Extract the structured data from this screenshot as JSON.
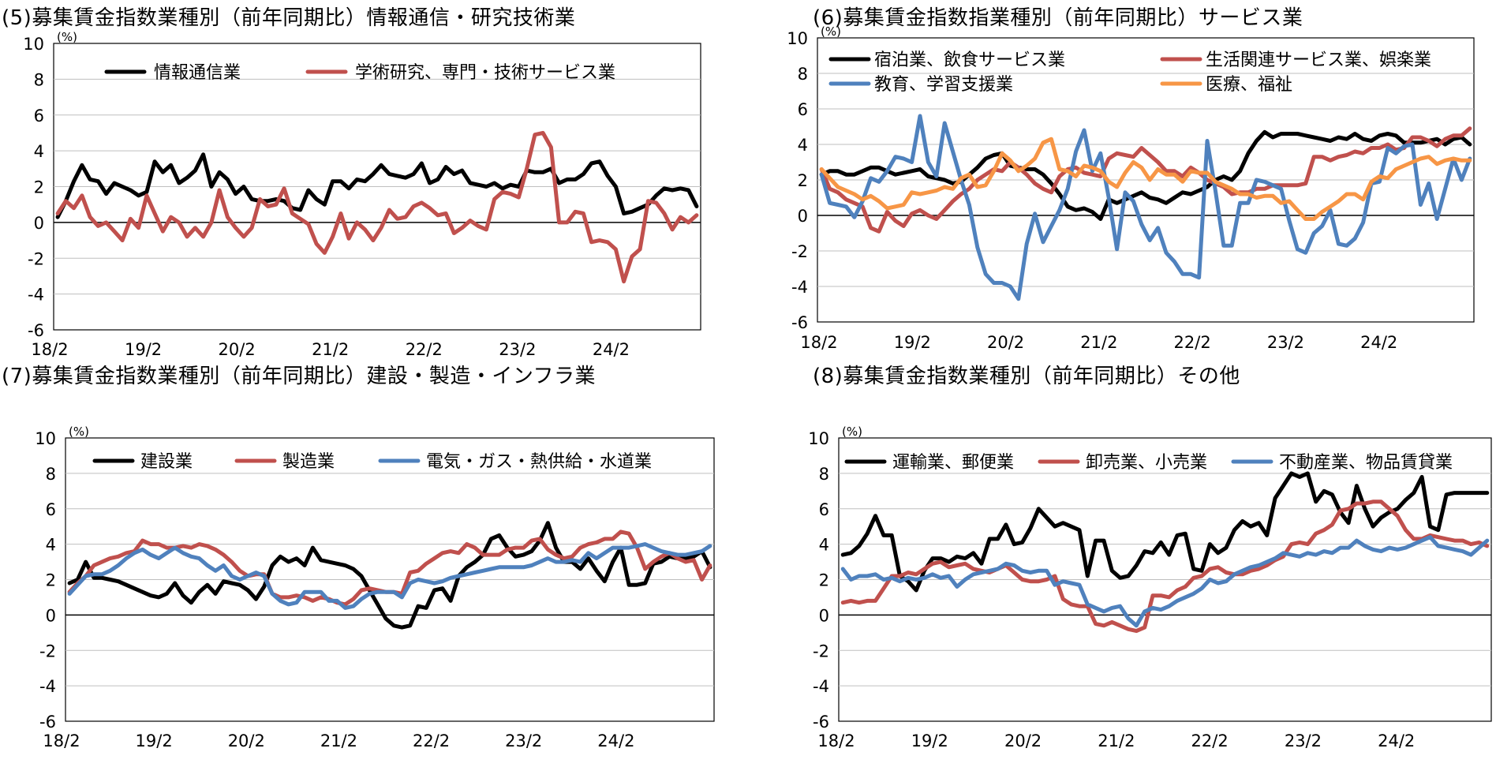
{
  "chart_data": [
    {
      "type": "line",
      "title": "(5)募集賃金指数業種別（前年同期比）情報通信・研究技術業",
      "ylabel": "(%)",
      "ylim": [
        -6,
        10
      ],
      "yticks": [
        "10",
        "8",
        "6",
        "4",
        "2",
        "0",
        "-2",
        "-4",
        "-6"
      ],
      "xlabels": [
        "18/2",
        "19/2",
        "20/2",
        "21/2",
        "22/2",
        "23/2",
        "24/2"
      ],
      "n_points": 80,
      "series": [
        {
          "name": "情報通信業",
          "color": "#000000",
          "values": [
            0.3,
            1.2,
            2.3,
            3.2,
            2.4,
            2.3,
            1.6,
            2.2,
            2.0,
            1.8,
            1.5,
            1.7,
            3.4,
            2.8,
            3.2,
            2.2,
            2.5,
            2.9,
            3.8,
            2.0,
            2.8,
            2.4,
            1.6,
            2.0,
            1.3,
            1.2,
            1.2,
            1.3,
            1.2,
            0.8,
            0.7,
            1.8,
            1.3,
            1.0,
            2.3,
            2.3,
            1.9,
            2.4,
            2.3,
            2.7,
            3.2,
            2.7,
            2.6,
            2.5,
            2.7,
            3.3,
            2.2,
            2.4,
            3.1,
            2.7,
            2.9,
            2.2,
            2.1,
            2.0,
            2.2,
            1.9,
            2.1,
            2.0,
            2.9,
            2.8,
            2.8,
            3.0,
            2.2,
            2.4,
            2.4,
            2.7,
            3.3,
            3.4,
            2.6,
            2.0,
            0.5,
            0.6,
            0.8,
            1.0,
            1.5,
            1.9,
            1.8,
            1.9,
            1.8,
            0.9
          ]
        },
        {
          "name": "学術研究、専門・技術サービス業",
          "color": "#c0504d",
          "values": [
            0.5,
            1.2,
            0.8,
            1.5,
            0.3,
            -0.2,
            0.0,
            -0.5,
            -1.0,
            0.2,
            -0.3,
            1.5,
            0.5,
            -0.5,
            0.3,
            0.0,
            -0.8,
            -0.3,
            -0.8,
            0.0,
            1.8,
            0.3,
            -0.3,
            -0.8,
            -0.3,
            1.3,
            0.9,
            1.0,
            1.9,
            0.5,
            0.2,
            -0.1,
            -1.2,
            -1.7,
            -0.8,
            0.5,
            -0.9,
            0.0,
            -0.4,
            -1.0,
            -0.3,
            0.7,
            0.2,
            0.3,
            0.9,
            1.1,
            0.8,
            0.4,
            0.5,
            -0.6,
            -0.3,
            0.1,
            -0.2,
            -0.4,
            1.3,
            1.7,
            1.6,
            1.4,
            3.0,
            4.9,
            5.0,
            4.2,
            0.0,
            0.0,
            0.6,
            0.5,
            -1.1,
            -1.0,
            -1.1,
            -1.5,
            -3.3,
            -1.9,
            -1.5,
            1.2,
            1.1,
            0.5,
            -0.4,
            0.3,
            0.0,
            0.4
          ]
        }
      ]
    },
    {
      "type": "line",
      "title": "(6)募集賃金指数指業種別（前年同期比）サービス業",
      "ylabel": "(%)",
      "ylim": [
        -6,
        10
      ],
      "yticks": [
        "10",
        "8",
        "6",
        "4",
        "2",
        "0",
        "-2",
        "-4",
        "-6"
      ],
      "xlabels": [
        "18/2",
        "19/2",
        "20/2",
        "21/2",
        "22/2",
        "23/2",
        "24/2"
      ],
      "n_points": 80,
      "series": [
        {
          "name": "宿泊業、飲食サービス業",
          "color": "#000000",
          "values": [
            2.3,
            2.5,
            2.5,
            2.3,
            2.3,
            2.5,
            2.7,
            2.7,
            2.5,
            2.3,
            2.4,
            2.5,
            2.6,
            2.2,
            2.1,
            2.0,
            1.8,
            1.9,
            2.3,
            2.7,
            3.2,
            3.4,
            3.5,
            2.8,
            2.7,
            2.6,
            2.6,
            2.3,
            1.8,
            1.2,
            0.5,
            0.3,
            0.4,
            0.2,
            -0.2,
            0.9,
            0.7,
            0.9,
            1.1,
            1.3,
            1.0,
            0.9,
            0.7,
            1.0,
            1.3,
            1.2,
            1.4,
            1.6,
            2.0,
            2.2,
            2.0,
            2.5,
            3.5,
            4.2,
            4.7,
            4.4,
            4.6,
            4.6,
            4.6,
            4.5,
            4.4,
            4.3,
            4.2,
            4.4,
            4.3,
            4.6,
            4.3,
            4.2,
            4.5,
            4.6,
            4.5,
            4.1,
            4.1,
            4.1,
            4.2,
            4.3,
            4.0,
            4.3,
            4.4,
            4.0
          ]
        },
        {
          "name": "生活関連サービス業、娯楽業",
          "color": "#c0504d",
          "values": [
            2.6,
            1.5,
            1.3,
            0.9,
            0.7,
            0.5,
            -0.7,
            -0.9,
            0.2,
            -0.3,
            -0.6,
            0.1,
            0.3,
            0.0,
            -0.2,
            0.3,
            0.8,
            1.2,
            1.5,
            2.0,
            2.3,
            2.6,
            2.5,
            3.0,
            2.7,
            2.3,
            1.8,
            1.5,
            1.3,
            2.2,
            2.6,
            2.7,
            2.4,
            2.3,
            2.2,
            3.2,
            3.5,
            3.4,
            3.3,
            3.8,
            3.4,
            3.0,
            2.5,
            2.5,
            2.2,
            2.7,
            2.4,
            2.0,
            1.8,
            1.6,
            1.2,
            1.3,
            1.3,
            1.5,
            1.5,
            1.7,
            1.7,
            1.7,
            1.7,
            1.8,
            3.3,
            3.3,
            3.1,
            3.3,
            3.4,
            3.6,
            3.5,
            3.8,
            3.8,
            4.0,
            3.7,
            3.8,
            4.4,
            4.4,
            4.2,
            3.9,
            4.3,
            4.5,
            4.5,
            4.9
          ]
        },
        {
          "name": "教育、学習支援業",
          "color": "#4f81bd",
          "values": [
            2.3,
            0.7,
            0.6,
            0.5,
            -0.1,
            0.8,
            2.1,
            1.9,
            2.5,
            3.3,
            3.2,
            3.0,
            5.6,
            3.0,
            2.2,
            5.2,
            3.6,
            2.0,
            0.6,
            -1.8,
            -3.3,
            -3.8,
            -3.8,
            -4.0,
            -4.7,
            -1.6,
            0.1,
            -1.5,
            -0.6,
            0.3,
            1.5,
            3.6,
            4.8,
            2.5,
            3.5,
            1.0,
            -1.9,
            1.3,
            0.8,
            -0.5,
            -1.4,
            -0.7,
            -2.1,
            -2.6,
            -3.3,
            -3.3,
            -3.5,
            4.2,
            1.4,
            -1.7,
            -1.7,
            0.7,
            0.7,
            2.0,
            1.9,
            1.7,
            1.5,
            -0.3,
            -1.9,
            -2.1,
            -1.0,
            -0.6,
            0.3,
            -1.6,
            -1.7,
            -1.3,
            -0.4,
            1.8,
            1.9,
            3.8,
            3.5,
            3.9,
            4.0,
            0.6,
            1.8,
            -0.2,
            1.5,
            3.2,
            2.0,
            3.2
          ]
        },
        {
          "name": "医療、福祉",
          "color": "#f79646",
          "values": [
            2.6,
            2.1,
            1.6,
            1.4,
            1.2,
            0.9,
            1.1,
            0.8,
            0.4,
            0.5,
            0.6,
            1.3,
            1.2,
            1.3,
            1.4,
            1.6,
            1.5,
            2.1,
            2.3,
            1.6,
            1.7,
            2.5,
            3.5,
            3.1,
            2.5,
            2.8,
            3.2,
            4.1,
            4.3,
            2.6,
            2.5,
            2.2,
            2.8,
            2.7,
            2.5,
            1.9,
            1.6,
            2.4,
            3.0,
            2.7,
            2.0,
            2.6,
            2.3,
            2.3,
            1.9,
            2.5,
            2.4,
            2.4,
            1.9,
            1.7,
            1.5,
            1.2,
            1.2,
            1.0,
            1.1,
            1.1,
            0.7,
            0.8,
            0.3,
            -0.2,
            -0.2,
            0.2,
            0.5,
            0.8,
            1.2,
            1.2,
            0.9,
            1.9,
            2.2,
            2.1,
            2.6,
            2.8,
            3.0,
            3.2,
            3.3,
            2.9,
            3.1,
            3.2,
            3.1,
            3.1
          ]
        }
      ]
    },
    {
      "type": "line",
      "title": "(7)募集賃金指数業種別（前年同期比）建設・製造・インフラ業",
      "ylabel": "(%)",
      "ylim": [
        -6,
        10
      ],
      "yticks": [
        "10",
        "8",
        "6",
        "4",
        "2",
        "0",
        "-2",
        "-4",
        "-6"
      ],
      "xlabels": [
        "18/2",
        "19/2",
        "20/2",
        "21/2",
        "22/2",
        "23/2",
        "24/2"
      ],
      "n_points": 80,
      "series": [
        {
          "name": "建設業",
          "color": "#000000",
          "values": [
            1.8,
            2.0,
            3.0,
            2.1,
            2.1,
            2.0,
            1.9,
            1.7,
            1.5,
            1.3,
            1.1,
            1.0,
            1.2,
            1.8,
            1.1,
            0.7,
            1.3,
            1.7,
            1.2,
            1.9,
            1.8,
            1.7,
            1.4,
            0.9,
            1.6,
            2.8,
            3.3,
            3.0,
            3.2,
            2.8,
            3.8,
            3.1,
            3.0,
            2.9,
            2.8,
            2.6,
            2.2,
            1.4,
            0.6,
            -0.2,
            -0.6,
            -0.7,
            -0.6,
            0.5,
            0.4,
            1.4,
            1.5,
            0.8,
            2.2,
            2.7,
            3.0,
            3.4,
            4.3,
            4.5,
            3.8,
            3.3,
            3.4,
            3.6,
            4.2,
            5.2,
            3.8,
            3.0,
            3.0,
            2.6,
            3.2,
            2.5,
            1.9,
            3.0,
            3.8,
            1.7,
            1.7,
            1.8,
            2.9,
            3.0,
            3.3,
            3.2,
            3.2,
            3.3,
            3.6,
            2.7
          ]
        },
        {
          "name": "製造業",
          "color": "#c0504d",
          "values": [
            1.3,
            1.8,
            2.2,
            2.8,
            3.0,
            3.2,
            3.3,
            3.5,
            3.6,
            4.2,
            4.0,
            4.0,
            3.8,
            3.8,
            3.9,
            3.8,
            4.0,
            3.9,
            3.7,
            3.4,
            3.0,
            2.5,
            2.2,
            2.3,
            2.3,
            1.2,
            1.0,
            1.0,
            1.1,
            1.0,
            0.8,
            1.0,
            0.9,
            0.7,
            0.6,
            0.9,
            1.4,
            1.5,
            1.4,
            1.3,
            1.3,
            1.2,
            2.4,
            2.5,
            2.9,
            3.2,
            3.5,
            3.6,
            3.5,
            4.0,
            3.8,
            3.4,
            3.4,
            3.4,
            3.7,
            3.8,
            3.8,
            4.2,
            4.3,
            3.7,
            3.4,
            3.2,
            3.3,
            3.8,
            4.0,
            4.1,
            4.3,
            4.3,
            4.7,
            4.6,
            3.8,
            2.6,
            3.0,
            3.3,
            3.5,
            3.2,
            3.0,
            3.1,
            2.0,
            2.8
          ]
        },
        {
          "name": "電気・ガス・熱供給・水道業",
          "color": "#4f81bd",
          "values": [
            1.2,
            1.7,
            2.2,
            2.3,
            2.3,
            2.5,
            2.8,
            3.2,
            3.5,
            3.7,
            3.4,
            3.2,
            3.5,
            3.8,
            3.5,
            3.3,
            3.2,
            2.8,
            2.5,
            2.8,
            2.2,
            2.0,
            2.2,
            2.4,
            2.2,
            1.2,
            0.8,
            0.6,
            0.7,
            1.3,
            1.3,
            1.3,
            0.8,
            0.8,
            0.4,
            0.5,
            0.9,
            1.2,
            1.3,
            1.3,
            1.3,
            1.0,
            1.8,
            2.0,
            1.9,
            1.8,
            1.9,
            2.1,
            2.2,
            2.3,
            2.4,
            2.5,
            2.6,
            2.7,
            2.7,
            2.7,
            2.7,
            2.8,
            3.0,
            3.2,
            3.0,
            3.0,
            3.1,
            3.0,
            3.5,
            3.2,
            3.5,
            3.8,
            3.8,
            3.8,
            3.9,
            4.0,
            3.8,
            3.6,
            3.5,
            3.4,
            3.4,
            3.5,
            3.6,
            3.9
          ]
        }
      ]
    },
    {
      "type": "line",
      "title": "(8)募集賃金指数業種別（前年同期比）その他",
      "ylabel": "(%)",
      "ylim": [
        -6,
        10
      ],
      "yticks": [
        "10",
        "8",
        "6",
        "4",
        "2",
        "0",
        "-2",
        "-4",
        "-6"
      ],
      "xlabels": [
        "18/2",
        "19/2",
        "20/2",
        "21/2",
        "22/2",
        "23/2",
        "24/2"
      ],
      "n_points": 80,
      "series": [
        {
          "name": "運輸業、郵便業",
          "color": "#000000",
          "values": [
            3.4,
            3.5,
            3.9,
            4.6,
            5.6,
            4.5,
            4.5,
            2.2,
            1.9,
            1.4,
            2.5,
            3.2,
            3.2,
            3.0,
            3.3,
            3.2,
            3.5,
            2.9,
            4.3,
            4.3,
            5.1,
            4.0,
            4.1,
            4.9,
            6.0,
            5.5,
            5.0,
            5.2,
            5.0,
            4.8,
            2.2,
            4.2,
            4.2,
            2.5,
            2.1,
            2.2,
            2.8,
            3.6,
            3.5,
            4.1,
            3.4,
            4.5,
            4.6,
            2.6,
            2.5,
            4.0,
            3.5,
            3.8,
            4.8,
            5.3,
            5.0,
            5.2,
            4.5,
            6.6,
            7.3,
            8.0,
            7.8,
            8.0,
            6.4,
            7.0,
            6.8,
            5.8,
            5.2,
            7.3,
            6.0,
            5.0,
            5.5,
            5.8,
            6.0,
            6.5,
            6.9,
            7.8,
            5.0,
            4.8,
            6.8,
            6.9,
            6.9,
            6.9,
            6.9,
            6.9
          ]
        },
        {
          "name": "卸売業、小売業",
          "color": "#c0504d",
          "values": [
            0.7,
            0.8,
            0.7,
            0.8,
            0.8,
            1.5,
            2.2,
            2.2,
            2.4,
            2.3,
            2.6,
            2.9,
            3.0,
            2.7,
            2.8,
            2.9,
            2.6,
            2.5,
            2.4,
            2.6,
            2.8,
            2.4,
            2.0,
            1.9,
            1.9,
            2.0,
            2.2,
            0.9,
            0.6,
            0.5,
            0.5,
            -0.5,
            -0.6,
            -0.4,
            -0.6,
            -0.8,
            -0.9,
            -0.7,
            1.1,
            1.1,
            1.0,
            1.4,
            1.6,
            2.1,
            2.2,
            2.6,
            2.7,
            2.4,
            2.3,
            2.3,
            2.5,
            2.6,
            2.8,
            3.1,
            3.3,
            4.0,
            4.1,
            4.0,
            4.6,
            4.8,
            5.1,
            5.9,
            6.0,
            6.3,
            6.3,
            6.4,
            6.4,
            6.0,
            5.6,
            4.8,
            4.3,
            4.3,
            4.5,
            4.4,
            4.3,
            4.2,
            4.2,
            4.0,
            4.1,
            3.9
          ]
        },
        {
          "name": "不動産業、物品賃貸業",
          "color": "#4f81bd",
          "values": [
            2.6,
            2.0,
            2.2,
            2.2,
            2.3,
            2.0,
            2.1,
            1.9,
            2.1,
            2.0,
            2.1,
            2.3,
            2.1,
            2.2,
            1.6,
            2.0,
            2.3,
            2.4,
            2.5,
            2.6,
            2.9,
            2.8,
            2.5,
            2.4,
            2.5,
            2.5,
            1.7,
            1.9,
            1.8,
            1.7,
            0.6,
            0.4,
            0.2,
            0.4,
            0.5,
            -0.2,
            -0.6,
            0.2,
            0.4,
            0.3,
            0.5,
            0.8,
            1.0,
            1.2,
            1.5,
            2.0,
            1.8,
            1.9,
            2.3,
            2.5,
            2.7,
            2.8,
            3.0,
            3.2,
            3.5,
            3.4,
            3.3,
            3.5,
            3.4,
            3.6,
            3.5,
            3.8,
            3.8,
            4.2,
            3.9,
            3.7,
            3.6,
            3.8,
            3.7,
            3.8,
            4.0,
            4.2,
            4.4,
            3.9,
            3.8,
            3.7,
            3.6,
            3.4,
            3.8,
            4.2
          ]
        }
      ]
    }
  ]
}
